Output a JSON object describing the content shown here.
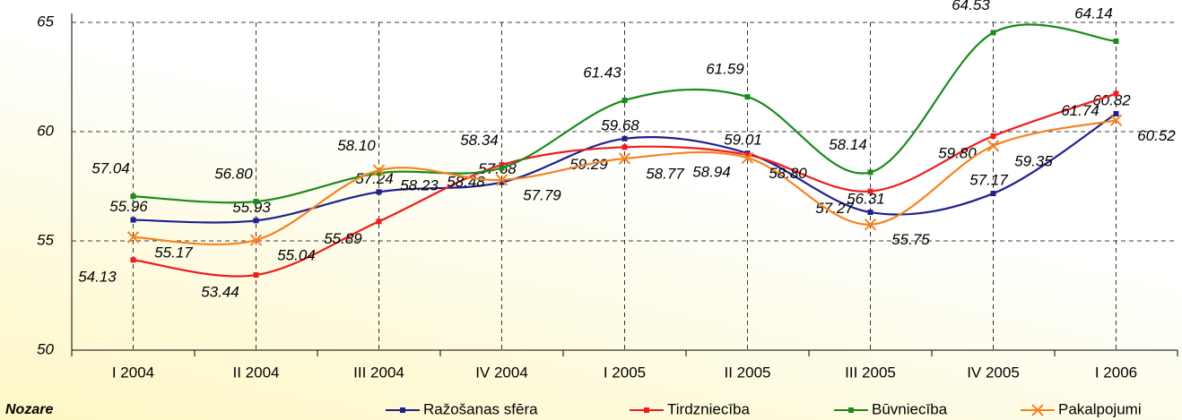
{
  "chart_data": {
    "type": "line",
    "categories": [
      "I 2004",
      "II 2004",
      "III 2004",
      "IV 2004",
      "I 2005",
      "II 2005",
      "III 2005",
      "IV 2005",
      "I 2006"
    ],
    "series": [
      {
        "name": "Ražošanas sfēra",
        "color": "#1f1f8f",
        "marker": "square",
        "values": [
          55.96,
          55.93,
          57.24,
          57.68,
          59.68,
          59.01,
          56.31,
          57.17,
          60.82
        ],
        "value_labels": [
          "55.96",
          "55.93",
          "57.24",
          "57.68",
          "59.68",
          "59.01",
          "56.31",
          "57.17",
          "60.82"
        ]
      },
      {
        "name": "Tirdzniecība",
        "color": "#ee1c1c",
        "marker": "square",
        "values": [
          54.13,
          53.44,
          55.89,
          58.48,
          59.29,
          58.94,
          57.27,
          59.8,
          61.74
        ],
        "value_labels": [
          "54.13",
          "53.44",
          "55.89",
          "58.48",
          "59.29",
          "58.94",
          "57.27",
          "59.80",
          "61.74"
        ]
      },
      {
        "name": "Būvniecība",
        "color": "#1a8a1a",
        "marker": "square",
        "values": [
          57.04,
          56.8,
          58.1,
          58.34,
          61.43,
          61.59,
          58.14,
          64.53,
          64.14
        ],
        "value_labels": [
          "57.04",
          "56.80",
          "58.10",
          "58.34",
          "61.43",
          "61.59",
          "58.14",
          "64.53",
          "64.14"
        ]
      },
      {
        "name": "Pakalpojumi",
        "color": "#f58220",
        "marker": "x",
        "values": [
          55.17,
          55.04,
          58.23,
          57.79,
          58.77,
          58.8,
          55.75,
          59.35,
          60.52
        ],
        "value_labels": [
          "55.17",
          "55.04",
          "58.23",
          "57.79",
          "58.77",
          "58.80",
          "55.75",
          "59.35",
          "60.52"
        ]
      }
    ],
    "ylim": [
      50,
      65
    ],
    "yticks": [
      50,
      55,
      60,
      65
    ],
    "grid": true,
    "axis_title": "Nozare",
    "legend": "bottom"
  }
}
